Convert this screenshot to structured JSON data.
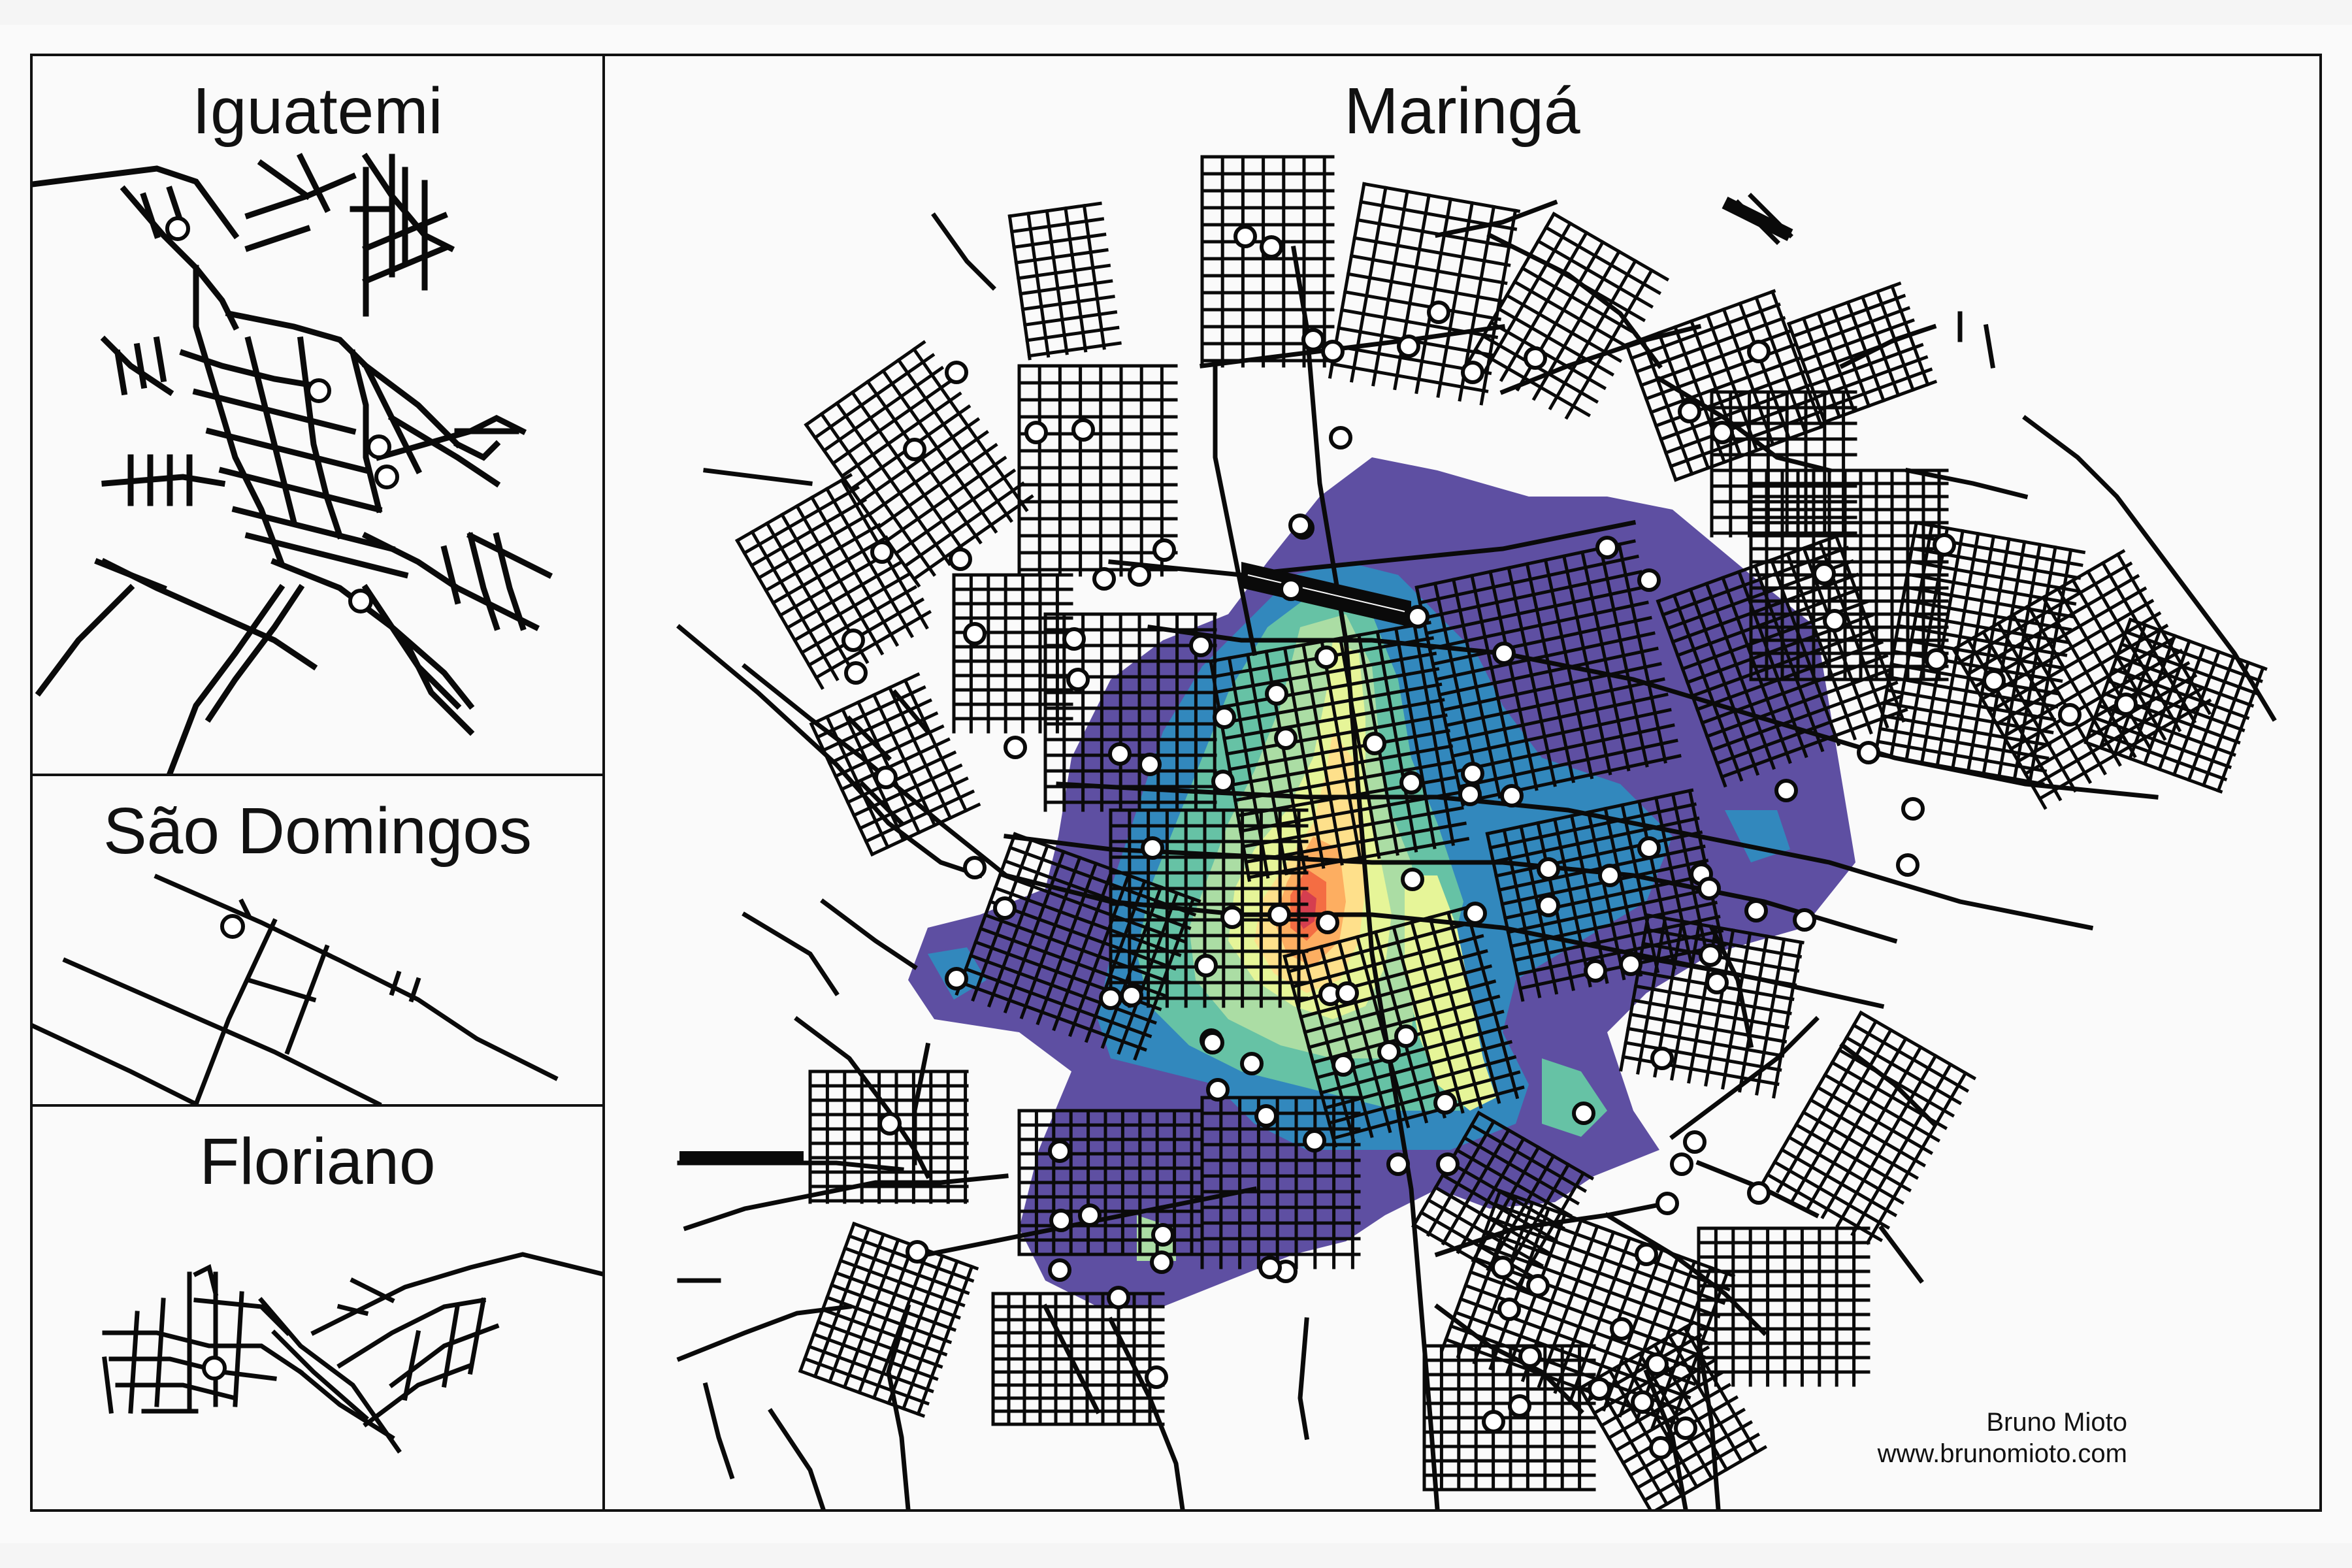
{
  "panels": {
    "iguatemi": {
      "title": "Iguatemi"
    },
    "sao_domingos": {
      "title": "São Domingos"
    },
    "floriano": {
      "title": "Floriano"
    },
    "maringa": {
      "title": "Maringá"
    }
  },
  "credit": {
    "author": "Bruno Mioto",
    "website": "www.brunomioto.com"
  },
  "colors": {
    "roads": "#0a0a0a",
    "points": "#ffffff",
    "density_palette": [
      "#5e4fa2",
      "#3288bd",
      "#66c2a5",
      "#abdda4",
      "#e6f598",
      "#fee08b",
      "#fdae61",
      "#f46d43",
      "#d53e4f",
      "#9e0142"
    ]
  },
  "icons": {
    "point_marker": "white-circle-marker"
  }
}
